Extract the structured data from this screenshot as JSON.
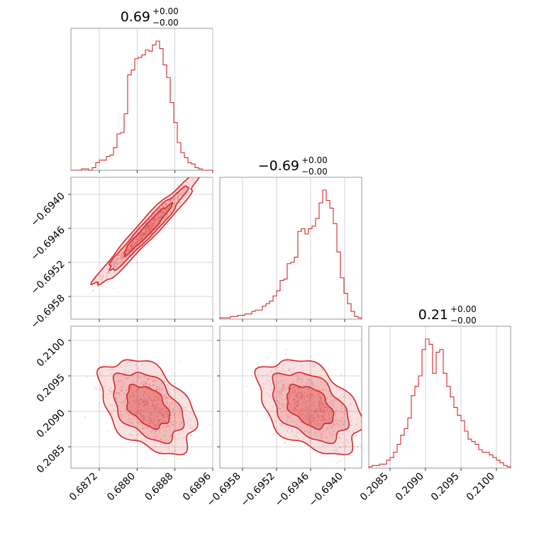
{
  "chart_data": {
    "type": "corner",
    "color": "#d62728",
    "grid": true,
    "parameters": [
      {
        "title": {
          "value": "0.69",
          "plus": "+0.00",
          "minus": "−0.00"
        },
        "range": [
          0.6866,
          0.6896
        ],
        "ticks": [
          0.6872,
          0.688,
          0.6888,
          0.6896
        ],
        "tick_labels": [
          "0.6872",
          "0.6880",
          "0.6888",
          "0.6896"
        ],
        "hist": [
          0,
          0,
          0,
          1,
          1,
          0,
          2,
          6,
          8,
          8,
          11,
          12,
          18,
          29,
          30,
          45,
          76,
          80,
          89,
          90,
          92,
          96,
          95,
          100,
          103,
          97,
          84,
          74,
          54,
          38,
          22,
          14,
          10,
          6,
          5,
          2,
          1,
          0,
          0,
          0
        ]
      },
      {
        "title": {
          "value": "−0.69",
          "plus": "+0.00",
          "minus": "−0.00"
        },
        "range": [
          -0.6962,
          -0.6937
        ],
        "ticks": [
          -0.6958,
          -0.6952,
          -0.6946,
          -0.694
        ],
        "tick_labels": [
          "−0.6958",
          "−0.6952",
          "−0.6946",
          "−0.6940"
        ],
        "hist": [
          1,
          1,
          1,
          2,
          2,
          3,
          3,
          4,
          4,
          6,
          7,
          7,
          10,
          12,
          14,
          18,
          22,
          30,
          31,
          43,
          44,
          48,
          68,
          70,
          66,
          70,
          72,
          78,
          90,
          100,
          92,
          86,
          74,
          52,
          32,
          20,
          12,
          6,
          2,
          1
        ]
      },
      {
        "title": {
          "value": "0.21",
          "plus": "+0.00",
          "minus": "−0.00"
        },
        "range": [
          0.2082,
          0.2102
        ],
        "ticks": [
          0.2085,
          0.209,
          0.2095,
          0.21
        ],
        "tick_labels": [
          "0.2085",
          "0.2090",
          "0.2095",
          "0.2100"
        ],
        "hist": [
          1,
          2,
          2,
          3,
          3,
          6,
          8,
          12,
          18,
          25,
          30,
          38,
          55,
          62,
          70,
          90,
          98,
          94,
          72,
          88,
          90,
          72,
          62,
          54,
          46,
          40,
          36,
          28,
          22,
          20,
          18,
          14,
          12,
          12,
          10,
          8,
          6,
          4,
          2,
          1
        ]
      }
    ],
    "pairs": [
      {
        "row": 1,
        "col": 0,
        "mean": [
          0.68822,
          -0.69462
        ],
        "sd": [
          0.00046,
          0.00041
        ],
        "rho": 0.97
      },
      {
        "row": 2,
        "col": 0,
        "mean": [
          0.68822,
          0.20907
        ],
        "sd": [
          0.00041,
          0.00027
        ],
        "rho": -0.42
      },
      {
        "row": 2,
        "col": 1,
        "mean": [
          -0.69462,
          0.20907
        ],
        "sd": [
          0.00037,
          0.00027
        ],
        "rho": -0.42
      }
    ]
  }
}
